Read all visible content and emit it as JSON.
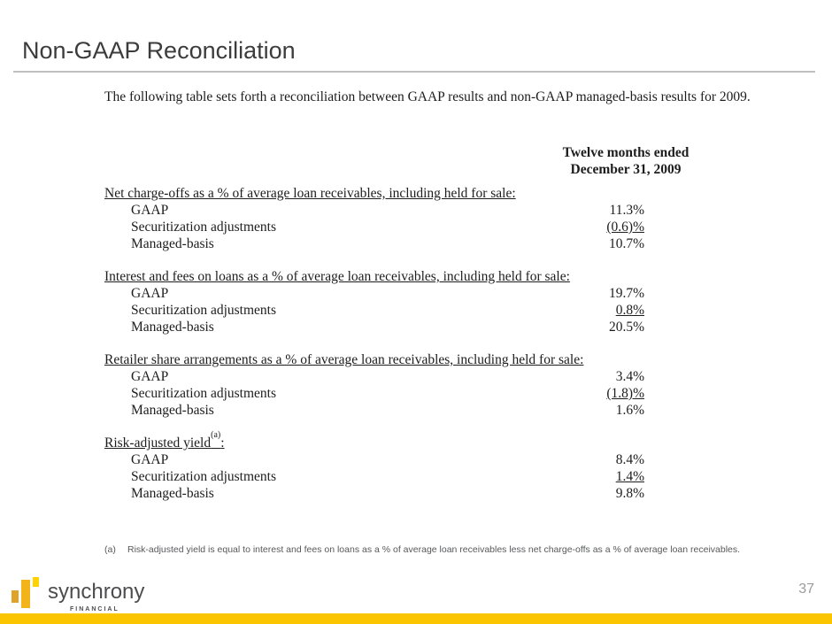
{
  "slide": {
    "title": "Non-GAAP Reconciliation",
    "intro": "The following table sets forth a reconciliation between GAAP results and non-GAAP managed-basis results for 2009.",
    "page_number": "37"
  },
  "table": {
    "column_header": {
      "line1": "Twelve months ended",
      "line2": "December 31, 2009"
    },
    "sections": [
      {
        "heading": "Net charge-offs as a % of average loan receivables, including held for sale:",
        "heading_sup": "",
        "heading_tail": "",
        "rows": [
          {
            "label": "GAAP",
            "value": "11.3%",
            "underlined": false
          },
          {
            "label": "Securitization adjustments",
            "value": "(0.6)%",
            "underlined": true
          },
          {
            "label": "Managed-basis",
            "value": "10.7%",
            "underlined": false
          }
        ]
      },
      {
        "heading": "Interest and fees on loans as a % of average loan receivables, including held for sale:",
        "heading_sup": "",
        "heading_tail": "",
        "rows": [
          {
            "label": "GAAP",
            "value": "19.7%",
            "underlined": false
          },
          {
            "label": "Securitization adjustments",
            "value": "0.8%",
            "underlined": true
          },
          {
            "label": "Managed-basis",
            "value": "20.5%",
            "underlined": false
          }
        ]
      },
      {
        "heading": "Retailer share arrangements as a % of average loan receivables, including held for sale:",
        "heading_sup": "",
        "heading_tail": "",
        "rows": [
          {
            "label": "GAAP",
            "value": "3.4%",
            "underlined": false
          },
          {
            "label": "Securitization adjustments",
            "value": "(1.8)%",
            "underlined": true
          },
          {
            "label": "Managed-basis",
            "value": "1.6%",
            "underlined": false
          }
        ]
      },
      {
        "heading": "Risk-adjusted yield",
        "heading_sup": "(a)",
        "heading_tail": ":",
        "rows": [
          {
            "label": "GAAP",
            "value": "8.4%",
            "underlined": false
          },
          {
            "label": "Securitization adjustments",
            "value": "1.4%",
            "underlined": true
          },
          {
            "label": "Managed-basis",
            "value": "9.8%",
            "underlined": false
          }
        ]
      }
    ]
  },
  "footnote": {
    "marker": "(a)",
    "text": "Risk-adjusted yield is equal to interest and fees on loans as a % of average loan receivables less net charge-offs as a % of average loan receivables."
  },
  "footer": {
    "logo_name": "synchrony",
    "logo_subtext": "FINANCIAL"
  },
  "colors": {
    "accent_gold": "#FBC600",
    "logo_bar_dark": "#DFA32A",
    "logo_bar_mid": "#F3B31B",
    "logo_bar_bright": "#FFD200",
    "title_gray": "#3C3C3C",
    "divider_gray": "#BFBFBF",
    "page_number_gray": "#9B9B9B"
  }
}
